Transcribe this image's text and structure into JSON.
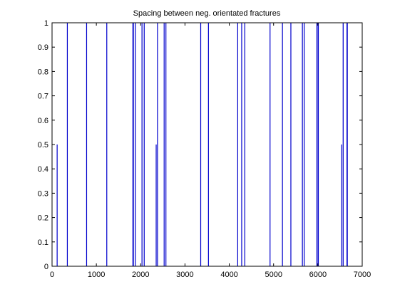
{
  "chart_data": {
    "type": "bar",
    "title": "Spacing between neg. orientated fractures",
    "xlabel": "",
    "ylabel": "",
    "xlim": [
      0,
      7000
    ],
    "ylim": [
      0,
      1
    ],
    "x_ticks": [
      0,
      1000,
      2000,
      3000,
      4000,
      5000,
      6000,
      7000
    ],
    "y_ticks": [
      0,
      0.1,
      0.2,
      0.3,
      0.4,
      0.5,
      0.6,
      0.7,
      0.8,
      0.9,
      1
    ],
    "grid": false,
    "colors": {
      "bars": "#0000cc",
      "axes": "#000000",
      "background": "#ffffff"
    },
    "series": [
      {
        "bars": [
          {
            "x": 115,
            "y": 0.5,
            "w": 8
          },
          {
            "x": 345,
            "y": 1,
            "w": 18
          },
          {
            "x": 780,
            "y": 1,
            "w": 18
          },
          {
            "x": 1235,
            "y": 1,
            "w": 18
          },
          {
            "x": 1830,
            "y": 1,
            "w": 30
          },
          {
            "x": 1880,
            "y": 1,
            "w": 15
          },
          {
            "x": 2030,
            "y": 1,
            "w": 8
          },
          {
            "x": 2080,
            "y": 1,
            "w": 15
          },
          {
            "x": 2350,
            "y": 0.5,
            "w": 8
          },
          {
            "x": 2380,
            "y": 1,
            "w": 8
          },
          {
            "x": 2530,
            "y": 1,
            "w": 15
          },
          {
            "x": 2570,
            "y": 1,
            "w": 18
          },
          {
            "x": 3355,
            "y": 1,
            "w": 20
          },
          {
            "x": 3530,
            "y": 1,
            "w": 8
          },
          {
            "x": 4190,
            "y": 1,
            "w": 8
          },
          {
            "x": 4280,
            "y": 1,
            "w": 15
          },
          {
            "x": 4350,
            "y": 1,
            "w": 18
          },
          {
            "x": 4920,
            "y": 1,
            "w": 8
          },
          {
            "x": 5200,
            "y": 1,
            "w": 20
          },
          {
            "x": 5390,
            "y": 1,
            "w": 18
          },
          {
            "x": 5650,
            "y": 1,
            "w": 20
          },
          {
            "x": 5690,
            "y": 1,
            "w": 10
          },
          {
            "x": 5980,
            "y": 1,
            "w": 25
          },
          {
            "x": 6010,
            "y": 1,
            "w": 10
          },
          {
            "x": 6535,
            "y": 0.5,
            "w": 8
          },
          {
            "x": 6570,
            "y": 1,
            "w": 20
          },
          {
            "x": 6660,
            "y": 1,
            "w": 28
          }
        ]
      }
    ]
  }
}
